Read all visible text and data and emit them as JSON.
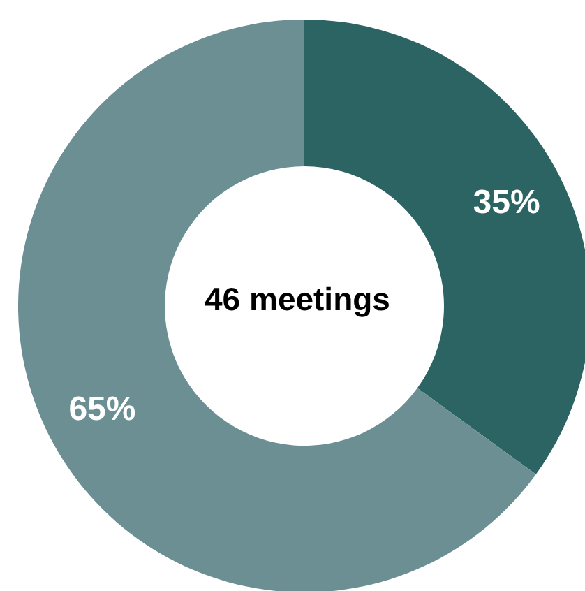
{
  "chart_data": {
    "type": "donut",
    "categories": [
      null,
      null
    ],
    "values": [
      35,
      65
    ],
    "colors": [
      "#2b6462",
      "#6b8f93"
    ],
    "value_labels": [
      "35%",
      "65%"
    ],
    "annotations": [
      "46 meetings"
    ],
    "legend": false
  }
}
